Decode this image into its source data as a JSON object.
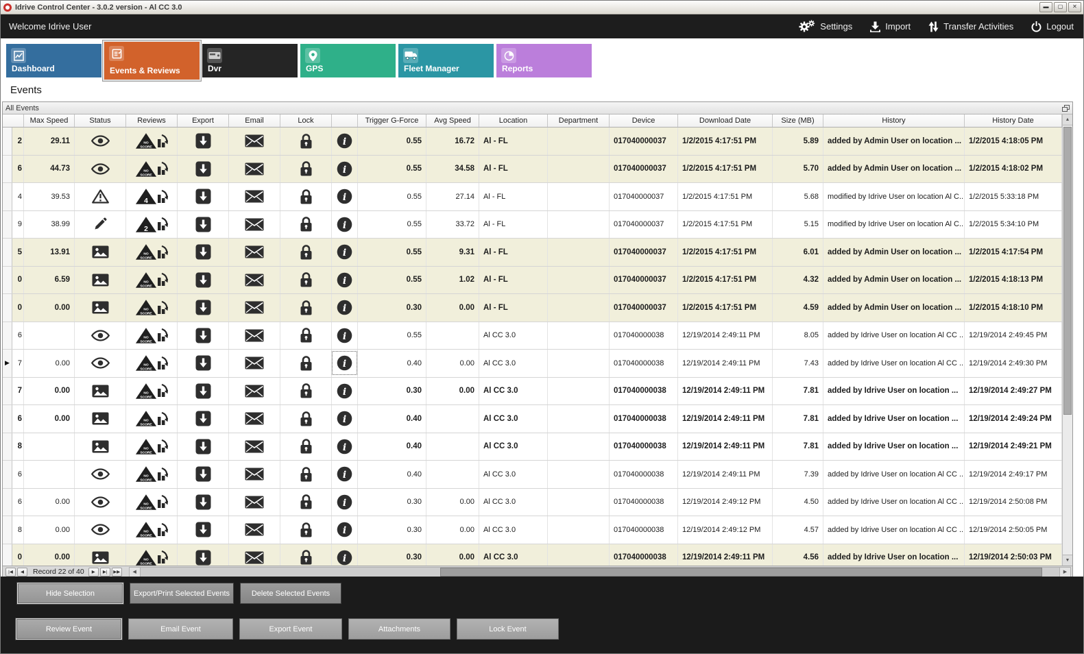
{
  "window": {
    "title": "Idrive Control Center - 3.0.2 version - Al CC 3.0"
  },
  "topbar": {
    "welcome": "Welcome Idrive User",
    "actions": [
      {
        "label": "Settings",
        "icon": "settings-gears"
      },
      {
        "label": "Import",
        "icon": "import-arrow"
      },
      {
        "label": "Transfer Activities",
        "icon": "transfer-arrows"
      },
      {
        "label": "Logout",
        "icon": "power"
      }
    ]
  },
  "tabs": [
    {
      "label": "Dashboard",
      "color": "#346e9e",
      "icon": "dashboard",
      "active": false
    },
    {
      "label": "Events & Reviews",
      "color": "#d2622b",
      "icon": "events",
      "active": true
    },
    {
      "label": "Dvr",
      "color": "#252525",
      "icon": "dvr",
      "active": false
    },
    {
      "label": "GPS",
      "color": "#2fb089",
      "icon": "gps",
      "active": false
    },
    {
      "label": "Fleet Manager",
      "color": "#2b96a4",
      "icon": "fleet",
      "active": false
    },
    {
      "label": "Reports",
      "color": "#bb7edb",
      "icon": "reports",
      "active": false
    }
  ],
  "page": {
    "title": "Events"
  },
  "panel": {
    "title": "All Events"
  },
  "grid": {
    "columns": [
      "",
      "Max Speed",
      "Status",
      "Reviews",
      "Export",
      "Email",
      "Lock",
      "",
      "Trigger G-Force",
      "Avg Speed",
      "Location",
      "Department",
      "Device",
      "Download Date",
      "Size (MB)",
      "History",
      "History Date"
    ],
    "rows": [
      {
        "partial": "2",
        "max_speed": "29.11",
        "status": "eye",
        "review": "NO SCORE",
        "trigger": "0.55",
        "avg_speed": "16.72",
        "location": "Al - FL",
        "department": "",
        "device": "017040000037",
        "download_date": "1/2/2015 4:17:51 PM",
        "size": "5.89",
        "history": "added by Admin User on location ...",
        "history_date": "1/2/2015 4:18:05 PM",
        "beige": true,
        "bold": true,
        "current": false,
        "focus": false
      },
      {
        "partial": "6",
        "max_speed": "44.73",
        "status": "eye",
        "review": "NO SCORE",
        "trigger": "0.55",
        "avg_speed": "34.58",
        "location": "Al - FL",
        "department": "",
        "device": "017040000037",
        "download_date": "1/2/2015 4:17:51 PM",
        "size": "5.70",
        "history": "added by Admin User on location ...",
        "history_date": "1/2/2015 4:18:02 PM",
        "beige": true,
        "bold": true,
        "current": false,
        "focus": false
      },
      {
        "partial": "4",
        "max_speed": "39.53",
        "status": "warning",
        "review": "4",
        "trigger": "0.55",
        "avg_speed": "27.14",
        "location": "Al - FL",
        "department": "",
        "device": "017040000037",
        "download_date": "1/2/2015 4:17:51 PM",
        "size": "5.68",
        "history": "modified by Idrive User on location Al C...",
        "history_date": "1/2/2015 5:33:18 PM",
        "beige": false,
        "bold": false,
        "current": false,
        "focus": false
      },
      {
        "partial": "9",
        "max_speed": "38.99",
        "status": "pencil",
        "review": "2",
        "trigger": "0.55",
        "avg_speed": "33.72",
        "location": "Al - FL",
        "department": "",
        "device": "017040000037",
        "download_date": "1/2/2015 4:17:51 PM",
        "size": "5.15",
        "history": "modified by Idrive User on location Al C...",
        "history_date": "1/2/2015 5:34:10 PM",
        "beige": false,
        "bold": false,
        "current": false,
        "focus": false
      },
      {
        "partial": "5",
        "max_speed": "13.91",
        "status": "image",
        "review": "NO SCORE",
        "trigger": "0.55",
        "avg_speed": "9.31",
        "location": "Al - FL",
        "department": "",
        "device": "017040000037",
        "download_date": "1/2/2015 4:17:51 PM",
        "size": "6.01",
        "history": "added by Admin User on location ...",
        "history_date": "1/2/2015 4:17:54 PM",
        "beige": true,
        "bold": true,
        "current": false,
        "focus": false
      },
      {
        "partial": "0",
        "max_speed": "6.59",
        "status": "image",
        "review": "NO SCORE",
        "trigger": "0.55",
        "avg_speed": "1.02",
        "location": "Al - FL",
        "department": "",
        "device": "017040000037",
        "download_date": "1/2/2015 4:17:51 PM",
        "size": "4.32",
        "history": "added by Admin User on location ...",
        "history_date": "1/2/2015 4:18:13 PM",
        "beige": true,
        "bold": true,
        "current": false,
        "focus": false
      },
      {
        "partial": "0",
        "max_speed": "0.00",
        "status": "image",
        "review": "NO SCORE",
        "trigger": "0.30",
        "avg_speed": "0.00",
        "location": "Al - FL",
        "department": "",
        "device": "017040000037",
        "download_date": "1/2/2015 4:17:51 PM",
        "size": "4.59",
        "history": "added by Admin User on location ...",
        "history_date": "1/2/2015 4:18:10 PM",
        "beige": true,
        "bold": true,
        "current": false,
        "focus": false
      },
      {
        "partial": "6",
        "max_speed": "",
        "status": "eye",
        "review": "NO SCORE",
        "trigger": "0.55",
        "avg_speed": "",
        "location": "Al CC 3.0",
        "department": "",
        "device": "017040000038",
        "download_date": "12/19/2014 2:49:11 PM",
        "size": "8.05",
        "history": "added by Idrive User on location Al CC ...",
        "history_date": "12/19/2014 2:49:45 PM",
        "beige": false,
        "bold": false,
        "current": false,
        "focus": false
      },
      {
        "partial": "7",
        "max_speed": "0.00",
        "status": "eye",
        "review": "NO SCORE",
        "trigger": "0.40",
        "avg_speed": "0.00",
        "location": "Al CC 3.0",
        "department": "",
        "device": "017040000038",
        "download_date": "12/19/2014 2:49:11 PM",
        "size": "7.43",
        "history": "added by Idrive User on location Al CC ...",
        "history_date": "12/19/2014 2:49:30 PM",
        "beige": false,
        "bold": false,
        "current": true,
        "focus": true
      },
      {
        "partial": "7",
        "max_speed": "0.00",
        "status": "image",
        "review": "NO SCORE",
        "trigger": "0.30",
        "avg_speed": "0.00",
        "location": "Al CC 3.0",
        "department": "",
        "device": "017040000038",
        "download_date": "12/19/2014 2:49:11 PM",
        "size": "7.81",
        "history": "added by Idrive User on location ...",
        "history_date": "12/19/2014 2:49:27 PM",
        "beige": false,
        "bold": true,
        "current": false,
        "focus": false
      },
      {
        "partial": "6",
        "max_speed": "0.00",
        "status": "image",
        "review": "NO SCORE",
        "trigger": "0.40",
        "avg_speed": "",
        "location": "Al CC 3.0",
        "department": "",
        "device": "017040000038",
        "download_date": "12/19/2014 2:49:11 PM",
        "size": "7.81",
        "history": "added by Idrive User on location ...",
        "history_date": "12/19/2014 2:49:24 PM",
        "beige": false,
        "bold": true,
        "current": false,
        "focus": false
      },
      {
        "partial": "8",
        "max_speed": "",
        "status": "image",
        "review": "NO SCORE",
        "trigger": "0.40",
        "avg_speed": "",
        "location": "Al CC 3.0",
        "department": "",
        "device": "017040000038",
        "download_date": "12/19/2014 2:49:11 PM",
        "size": "7.81",
        "history": "added by Idrive User on location ...",
        "history_date": "12/19/2014 2:49:21 PM",
        "beige": false,
        "bold": true,
        "current": false,
        "focus": false
      },
      {
        "partial": "6",
        "max_speed": "",
        "status": "eye",
        "review": "NO SCORE",
        "trigger": "0.40",
        "avg_speed": "",
        "location": "Al CC 3.0",
        "department": "",
        "device": "017040000038",
        "download_date": "12/19/2014 2:49:11 PM",
        "size": "7.39",
        "history": "added by Idrive User on location Al CC ...",
        "history_date": "12/19/2014 2:49:17 PM",
        "beige": false,
        "bold": false,
        "current": false,
        "focus": false
      },
      {
        "partial": "6",
        "max_speed": "0.00",
        "status": "eye",
        "review": "NO SCORE",
        "trigger": "0.30",
        "avg_speed": "0.00",
        "location": "Al CC 3.0",
        "department": "",
        "device": "017040000038",
        "download_date": "12/19/2014 2:49:12 PM",
        "size": "4.50",
        "history": "added by Idrive User on location Al CC ...",
        "history_date": "12/19/2014 2:50:08 PM",
        "beige": false,
        "bold": false,
        "current": false,
        "focus": false
      },
      {
        "partial": "8",
        "max_speed": "0.00",
        "status": "eye",
        "review": "NO SCORE",
        "trigger": "0.30",
        "avg_speed": "0.00",
        "location": "Al CC 3.0",
        "department": "",
        "device": "017040000038",
        "download_date": "12/19/2014 2:49:12 PM",
        "size": "4.57",
        "history": "added by Idrive User on location Al CC ...",
        "history_date": "12/19/2014 2:50:05 PM",
        "beige": false,
        "bold": false,
        "current": false,
        "focus": false
      },
      {
        "partial": "0",
        "max_speed": "0.00",
        "status": "image",
        "review": "NO SCORE",
        "trigger": "0.30",
        "avg_speed": "0.00",
        "location": "Al CC 3.0",
        "department": "",
        "device": "017040000038",
        "download_date": "12/19/2014 2:49:11 PM",
        "size": "4.56",
        "history": "added by Idrive User on location ...",
        "history_date": "12/19/2014 2:50:03 PM",
        "beige": true,
        "bold": true,
        "current": false,
        "focus": false
      }
    ]
  },
  "pager": {
    "label": "Record 22 of 40"
  },
  "footer": {
    "selection_buttons": [
      "Hide Selection",
      "Export/Print Selected Events",
      "Delete Selected  Events"
    ],
    "event_buttons": [
      "Review Event",
      "Email Event",
      "Export Event",
      "Attachments",
      "Lock Event"
    ]
  }
}
